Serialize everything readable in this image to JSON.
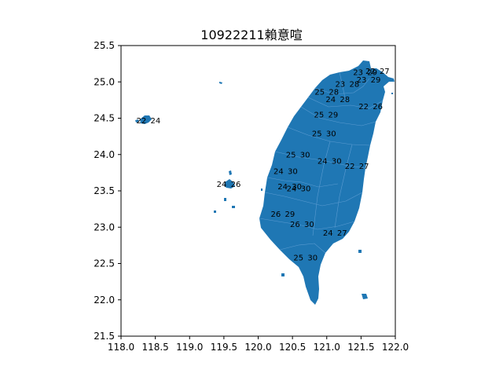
{
  "title": "10922211賴意喧",
  "map": {
    "fill_color": "#1f77b4",
    "border_color": "#5b9bd1",
    "axis_color": "#000000"
  },
  "axes": {
    "x_ticks": [
      "118.0",
      "118.5",
      "119.0",
      "119.5",
      "120.0",
      "120.5",
      "121.0",
      "121.5",
      "122.0"
    ],
    "y_ticks": [
      "25.5",
      "25.0",
      "24.5",
      "24.0",
      "23.5",
      "23.0",
      "22.5",
      "22.0",
      "21.5"
    ],
    "xlim": [
      118.0,
      122.0
    ],
    "ylim": [
      21.5,
      25.5
    ]
  },
  "labels": [
    {
      "lon": 121.74,
      "lat": 25.15,
      "low": "22",
      "high": "27"
    },
    {
      "lon": 121.56,
      "lat": 25.13,
      "low": "23",
      "high": "29"
    },
    {
      "lon": 121.61,
      "lat": 25.03,
      "low": "23",
      "high": "29"
    },
    {
      "lon": 121.3,
      "lat": 24.97,
      "low": "23",
      "high": "28"
    },
    {
      "lon": 121.0,
      "lat": 24.86,
      "low": "25",
      "high": "28"
    },
    {
      "lon": 121.16,
      "lat": 24.76,
      "low": "24",
      "high": "28"
    },
    {
      "lon": 121.64,
      "lat": 24.66,
      "low": "22",
      "high": "26"
    },
    {
      "lon": 120.99,
      "lat": 24.55,
      "low": "25",
      "high": "29"
    },
    {
      "lon": 120.96,
      "lat": 24.29,
      "low": "25",
      "high": "30"
    },
    {
      "lon": 120.58,
      "lat": 24.0,
      "low": "25",
      "high": "30"
    },
    {
      "lon": 121.04,
      "lat": 23.91,
      "low": "24",
      "high": "30"
    },
    {
      "lon": 121.44,
      "lat": 23.84,
      "low": "22",
      "high": "27"
    },
    {
      "lon": 120.4,
      "lat": 23.77,
      "low": "24",
      "high": "30"
    },
    {
      "lon": 120.46,
      "lat": 23.56,
      "low": "24",
      "high": "30"
    },
    {
      "lon": 120.59,
      "lat": 23.53,
      "low": "24",
      "high": "30"
    },
    {
      "lon": 118.4,
      "lat": 24.47,
      "low": "22",
      "high": "24"
    },
    {
      "lon": 119.57,
      "lat": 23.59,
      "low": "24",
      "high": "26"
    },
    {
      "lon": 120.36,
      "lat": 23.18,
      "low": "26",
      "high": "29"
    },
    {
      "lon": 120.64,
      "lat": 23.04,
      "low": "26",
      "high": "30"
    },
    {
      "lon": 121.12,
      "lat": 22.92,
      "low": "24",
      "high": "27"
    },
    {
      "lon": 120.69,
      "lat": 22.58,
      "low": "25",
      "high": "30"
    }
  ]
}
